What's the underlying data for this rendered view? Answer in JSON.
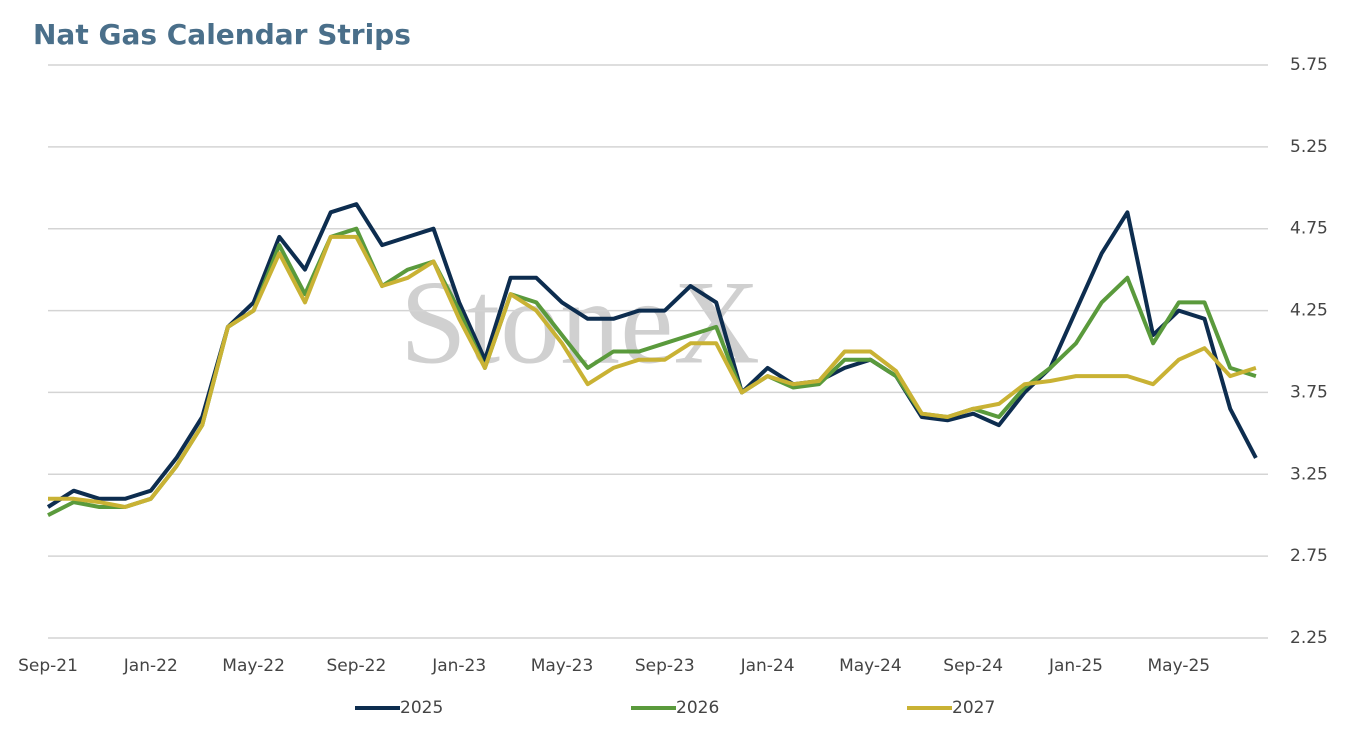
{
  "chart_data": {
    "type": "line",
    "title": "Nat Gas Calendar Strips",
    "watermark": "StoneX",
    "categories": [
      "Sep-21",
      null,
      null,
      null,
      "Jan-22",
      null,
      null,
      null,
      "May-22",
      null,
      null,
      null,
      "Sep-22",
      null,
      null,
      null,
      "Jan-23",
      null,
      null,
      null,
      "May-23",
      null,
      null,
      null,
      "Sep-23",
      null,
      null,
      null,
      "Jan-24",
      null,
      null,
      null,
      "May-24",
      null,
      null,
      null,
      "Sep-24",
      null,
      null,
      null,
      "Jan-25",
      null,
      null,
      null,
      "May-25",
      null,
      null,
      null
    ],
    "series": [
      {
        "name": "2025",
        "color": "#0d2d4f",
        "values": [
          3.05,
          3.15,
          3.1,
          3.1,
          3.15,
          3.35,
          3.6,
          4.15,
          4.3,
          4.7,
          4.5,
          4.85,
          4.9,
          4.65,
          4.7,
          4.75,
          4.3,
          3.95,
          4.45,
          4.45,
          4.3,
          4.2,
          4.2,
          4.25,
          4.25,
          4.4,
          4.3,
          3.75,
          3.9,
          3.8,
          3.82,
          3.9,
          3.95,
          3.85,
          3.6,
          3.58,
          3.62,
          3.55,
          3.75,
          3.9,
          4.25,
          4.6,
          4.85,
          4.1,
          4.25,
          4.2,
          3.65,
          3.35
        ]
      },
      {
        "name": "2026",
        "color": "#5a9a3c",
        "values": [
          3.0,
          3.08,
          3.05,
          3.05,
          3.1,
          3.3,
          3.55,
          4.15,
          4.25,
          4.65,
          4.35,
          4.7,
          4.75,
          4.4,
          4.5,
          4.55,
          4.25,
          3.9,
          4.35,
          4.3,
          4.1,
          3.9,
          4.0,
          4.0,
          4.05,
          4.1,
          4.15,
          3.75,
          3.85,
          3.78,
          3.8,
          3.95,
          3.95,
          3.85,
          3.62,
          3.6,
          3.65,
          3.6,
          3.78,
          3.9,
          4.05,
          4.3,
          4.45,
          4.05,
          4.3,
          4.3,
          3.9,
          3.85
        ]
      },
      {
        "name": "2027",
        "color": "#c9b234",
        "values": [
          3.1,
          3.1,
          3.08,
          3.05,
          3.1,
          3.3,
          3.55,
          4.15,
          4.25,
          4.6,
          4.3,
          4.7,
          4.7,
          4.4,
          4.45,
          4.55,
          4.2,
          3.9,
          4.35,
          4.25,
          4.05,
          3.8,
          3.9,
          3.95,
          3.95,
          4.05,
          4.05,
          3.75,
          3.85,
          3.8,
          3.82,
          4.0,
          4.0,
          3.88,
          3.62,
          3.6,
          3.65,
          3.68,
          3.8,
          3.82,
          3.85,
          3.85,
          3.85,
          3.8,
          3.95,
          4.02,
          3.85,
          3.9
        ]
      }
    ],
    "ylim": [
      2.25,
      5.75
    ],
    "yticks": [
      2.25,
      2.75,
      3.25,
      3.75,
      4.25,
      4.75,
      5.25,
      5.75
    ],
    "grid": true,
    "legend": "bottom"
  }
}
